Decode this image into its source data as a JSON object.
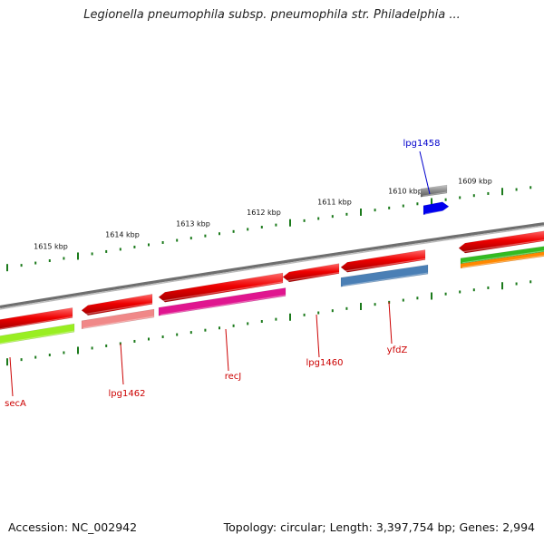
{
  "title": "Legionella pneumophila subsp. pneumophila str. Philadelphia ...",
  "footer": {
    "accession": "Accession: NC_002942",
    "summary": "Topology: circular; Length: 3,397,754 bp; Genes: 2,994"
  },
  "scale_ticks": [
    "1615 kbp",
    "1614 kbp",
    "1613 kbp",
    "1612 kbp",
    "1611 kbp",
    "1610 kbp",
    "1609 kbp"
  ],
  "gene_labels": [
    "secA",
    "lpg1462",
    "recJ",
    "lpg1460",
    "yfdZ",
    "lpg1458"
  ],
  "colors": {
    "backbone": "#8c8c8c",
    "forward_cds": "#ee0000",
    "tick": "#1b7a1b",
    "label_red": "#cc0000",
    "label_blue": "#0000cc",
    "cog_lime": "#99ee22",
    "cog_pink": "#f08888",
    "cog_magenta": "#e0158f",
    "cog_steelblue": "#4a7fb5",
    "cog_gray": "#606060",
    "cog_blue": "#0000ee",
    "cog_green": "#33bb22",
    "cog_orange": "#ff8800"
  }
}
